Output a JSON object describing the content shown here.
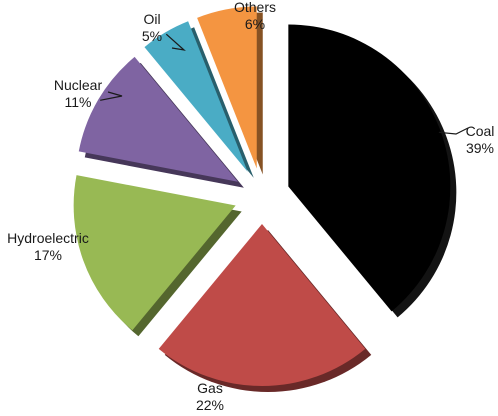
{
  "chart_data": {
    "type": "pie",
    "exploded": true,
    "style": "3d",
    "slices": [
      {
        "name": "Coal",
        "value": 39,
        "label": "39%",
        "color": "#000000"
      },
      {
        "name": "Gas",
        "value": 22,
        "label": "22%",
        "color": "#bf4b48"
      },
      {
        "name": "Hydroelectric",
        "value": 17,
        "label": "17%",
        "color": "#98b954"
      },
      {
        "name": "Nuclear",
        "value": 11,
        "label": "11%",
        "color": "#7f64a2"
      },
      {
        "name": "Oil",
        "value": 5,
        "label": "5%",
        "color": "#4aacc5"
      },
      {
        "name": "Others",
        "value": 6,
        "label": "6%",
        "color": "#f49541"
      }
    ]
  }
}
